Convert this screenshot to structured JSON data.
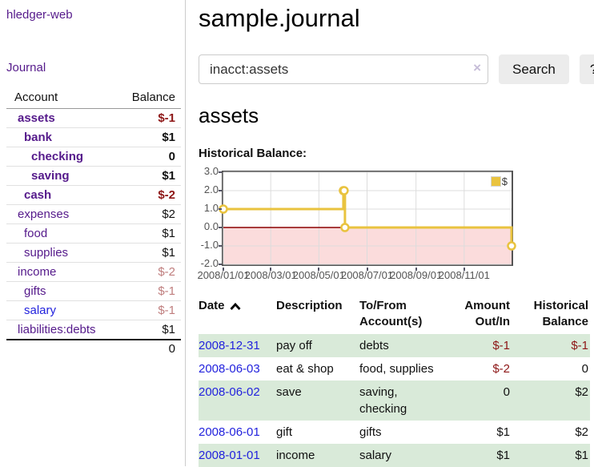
{
  "app": {
    "brand": "hledger-web"
  },
  "sidebar": {
    "journal_label": "Journal",
    "accounts_table": {
      "headers": {
        "account": "Account",
        "balance": "Balance"
      },
      "rows": [
        {
          "name": "assets",
          "depth": 1,
          "balance": "$-1",
          "bold": true,
          "neg": "strong",
          "link": "purple"
        },
        {
          "name": "bank",
          "depth": 2,
          "balance": "$1",
          "bold": true,
          "neg": "",
          "link": "purple"
        },
        {
          "name": "checking",
          "depth": 3,
          "balance": "0",
          "bold": true,
          "neg": "",
          "link": "purple"
        },
        {
          "name": "saving",
          "depth": 3,
          "balance": "$1",
          "bold": true,
          "neg": "",
          "link": "purple"
        },
        {
          "name": "cash",
          "depth": 2,
          "balance": "$-2",
          "bold": true,
          "neg": "strong",
          "link": "purple"
        },
        {
          "name": "expenses",
          "depth": 1,
          "balance": "$2",
          "bold": false,
          "neg": "",
          "link": "purple"
        },
        {
          "name": "food",
          "depth": 2,
          "balance": "$1",
          "bold": false,
          "neg": "",
          "link": "purple"
        },
        {
          "name": "supplies",
          "depth": 2,
          "balance": "$1",
          "bold": false,
          "neg": "",
          "link": "purple"
        },
        {
          "name": "income",
          "depth": 1,
          "balance": "$-2",
          "bold": false,
          "neg": "soft",
          "link": "purple"
        },
        {
          "name": "gifts",
          "depth": 2,
          "balance": "$-1",
          "bold": false,
          "neg": "soft",
          "link": "purple"
        },
        {
          "name": "salary",
          "depth": 2,
          "balance": "$-1",
          "bold": false,
          "neg": "soft",
          "link": "blue"
        },
        {
          "name": "liabilities:debts",
          "depth": 1,
          "balance": "$1",
          "bold": false,
          "neg": "",
          "link": "purple"
        }
      ],
      "total": "0"
    }
  },
  "header": {
    "title": "sample.journal"
  },
  "search": {
    "value": "inacct:assets",
    "clear_icon": "×",
    "button": "Search",
    "help_button": "?"
  },
  "account_page": {
    "heading": "assets",
    "chart_label": "Historical Balance:"
  },
  "chart_data": {
    "type": "line",
    "step": true,
    "title": "Historical Balance",
    "series": [
      {
        "name": "$",
        "color": "#e9c33f",
        "points": [
          [
            "2008-01-01",
            1
          ],
          [
            "2008-06-01",
            2
          ],
          [
            "2008-06-02",
            2
          ],
          [
            "2008-06-03",
            0
          ],
          [
            "2008-12-31",
            -1
          ]
        ]
      }
    ],
    "x_ticks": [
      "2008/01/01",
      "2008/03/01",
      "2008/05/01",
      "2008/07/01",
      "2008/09/01",
      "2008/11/01"
    ],
    "y_ticks": [
      3.0,
      2.0,
      1.0,
      0.0,
      -1.0,
      -2.0
    ],
    "xlim": [
      "2008-01-01",
      "2008-12-31"
    ],
    "ylim": [
      -2,
      3
    ],
    "grid": true,
    "legend_position": "top-right",
    "legend": [
      {
        "label": "$",
        "color": "#e9c33f"
      }
    ],
    "negative_region_color": "#fbdcdc",
    "zero_line_color": "#8b0000",
    "grid_color": "#dcdcdc",
    "border_color": "#545454"
  },
  "register": {
    "columns": [
      "Date",
      "Description",
      "To/From Account(s)",
      "Amount Out/In",
      "Historical Balance"
    ],
    "sort_icon": "chevron-up",
    "rows": [
      {
        "date": "2008-12-31",
        "description": "pay off",
        "accounts": "debts",
        "amount": "$-1",
        "balance": "$-1",
        "amount_neg": true,
        "balance_neg": true,
        "shaded": true
      },
      {
        "date": "2008-06-03",
        "description": "eat & shop",
        "accounts": "food, supplies",
        "amount": "$-2",
        "balance": "0",
        "amount_neg": true,
        "balance_neg": false,
        "shaded": false
      },
      {
        "date": "2008-06-02",
        "description": "save",
        "accounts": "saving, checking",
        "amount": "0",
        "balance": "$2",
        "amount_neg": false,
        "balance_neg": false,
        "shaded": true
      },
      {
        "date": "2008-06-01",
        "description": "gift",
        "accounts": "gifts",
        "amount": "$1",
        "balance": "$2",
        "amount_neg": false,
        "balance_neg": false,
        "shaded": false
      },
      {
        "date": "2008-01-01",
        "description": "income",
        "accounts": "salary",
        "amount": "$1",
        "balance": "$1",
        "amount_neg": false,
        "balance_neg": false,
        "shaded": true
      }
    ]
  }
}
